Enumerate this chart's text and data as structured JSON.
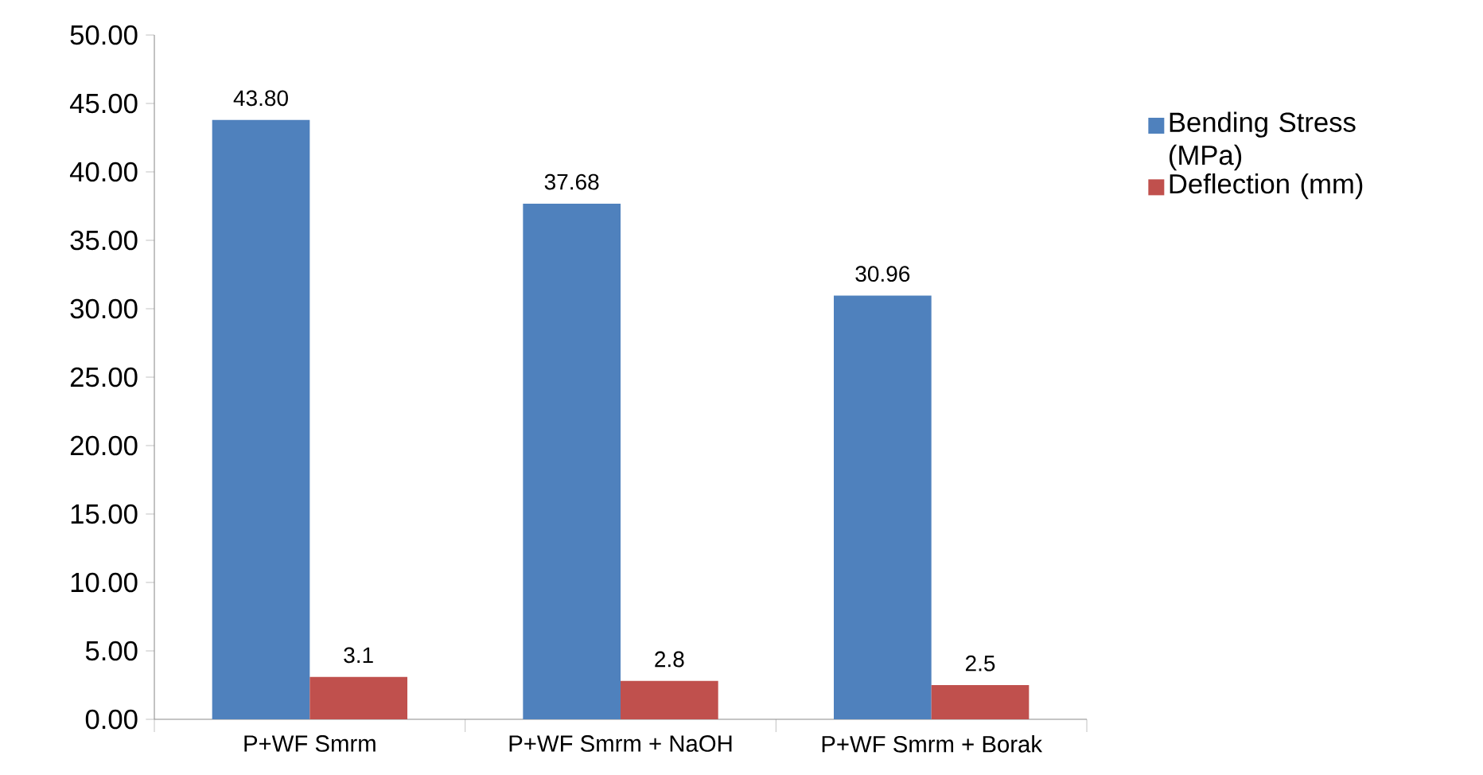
{
  "chart_data": {
    "type": "bar",
    "categories": [
      "P+WF Smrm",
      "P+WF Smrm + NaOH",
      "P+WF Smrm + Borak"
    ],
    "series": [
      {
        "name": "Bending Stress (MPa)",
        "color": "#4f81bd",
        "values": [
          43.8,
          37.68,
          30.96
        ],
        "value_labels": [
          "43.80",
          "37.68",
          "30.96"
        ]
      },
      {
        "name": "Deflection (mm)",
        "color": "#c0504d",
        "values": [
          3.1,
          2.8,
          2.5
        ],
        "value_labels": [
          "3.1",
          "2.8",
          "2.5"
        ]
      }
    ],
    "ylim": [
      0,
      50
    ],
    "yticks": [
      {
        "value": 0,
        "label": "0.00"
      },
      {
        "value": 5,
        "label": "5.00"
      },
      {
        "value": 10,
        "label": "10.00"
      },
      {
        "value": 15,
        "label": "15.00"
      },
      {
        "value": 20,
        "label": "20.00"
      },
      {
        "value": 25,
        "label": "25.00"
      },
      {
        "value": 30,
        "label": "30.00"
      },
      {
        "value": 35,
        "label": "35.00"
      },
      {
        "value": 40,
        "label": "40.00"
      },
      {
        "value": 45,
        "label": "45.00"
      },
      {
        "value": 50,
        "label": "50.00"
      }
    ],
    "grid": false,
    "legend": "right"
  }
}
